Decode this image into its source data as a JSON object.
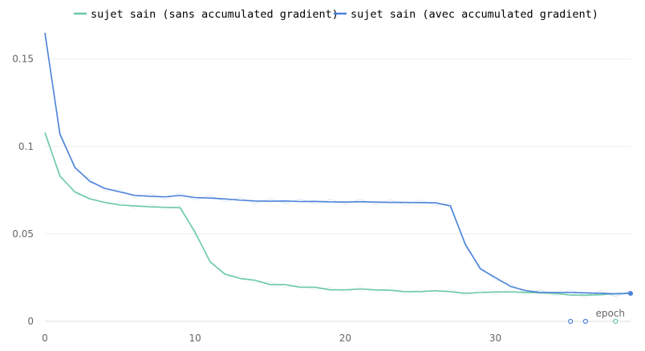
{
  "chart_data": {
    "type": "line",
    "title": "",
    "xlabel": "epoch",
    "ylabel": "",
    "xlim": [
      0,
      39
    ],
    "ylim": [
      0,
      0.17
    ],
    "grid": true,
    "legend_position": "top",
    "x_ticks": [
      "0",
      "10",
      "20",
      "30"
    ],
    "y_ticks": [
      "0",
      "0.05",
      "0.1",
      "0.15"
    ],
    "x": [
      0,
      1,
      2,
      3,
      4,
      5,
      6,
      7,
      8,
      9,
      10,
      11,
      12,
      13,
      14,
      15,
      16,
      17,
      18,
      19,
      20,
      21,
      22,
      23,
      24,
      25,
      26,
      27,
      28,
      29,
      30,
      31,
      32,
      33,
      34,
      35,
      36,
      37,
      38,
      39
    ],
    "series": [
      {
        "name": "sujet sain (sans accumulated gradient)",
        "color": "#6cc9a5",
        "values": [
          0.108,
          0.083,
          0.074,
          0.07,
          0.068,
          0.0665,
          0.066,
          0.0655,
          0.0652,
          0.065,
          0.051,
          0.034,
          0.027,
          0.0245,
          0.0235,
          0.021,
          0.021,
          0.0195,
          0.0195,
          0.018,
          0.018,
          0.0185,
          0.018,
          0.0178,
          0.017,
          0.017,
          0.0175,
          0.017,
          0.016,
          0.0165,
          0.0168,
          0.0168,
          0.0166,
          0.0163,
          0.016,
          0.015,
          0.015,
          0.0152,
          0.0158,
          0.016
        ]
      },
      {
        "name": "sujet sain (avec accumulated gradient)",
        "color": "#4a82d8",
        "values": [
          0.165,
          0.107,
          0.088,
          0.08,
          0.076,
          0.074,
          0.072,
          0.0715,
          0.0712,
          0.072,
          0.0708,
          0.0705,
          0.07,
          0.0693,
          0.0688,
          0.0687,
          0.0688,
          0.0685,
          0.0686,
          0.0683,
          0.0682,
          0.0684,
          0.0682,
          0.068,
          0.068,
          0.0679,
          0.0678,
          0.066,
          0.044,
          0.03,
          0.025,
          0.02,
          0.0176,
          0.0165,
          0.0165,
          0.0165,
          0.0163,
          0.016,
          0.0158,
          0.016
        ]
      }
    ]
  }
}
